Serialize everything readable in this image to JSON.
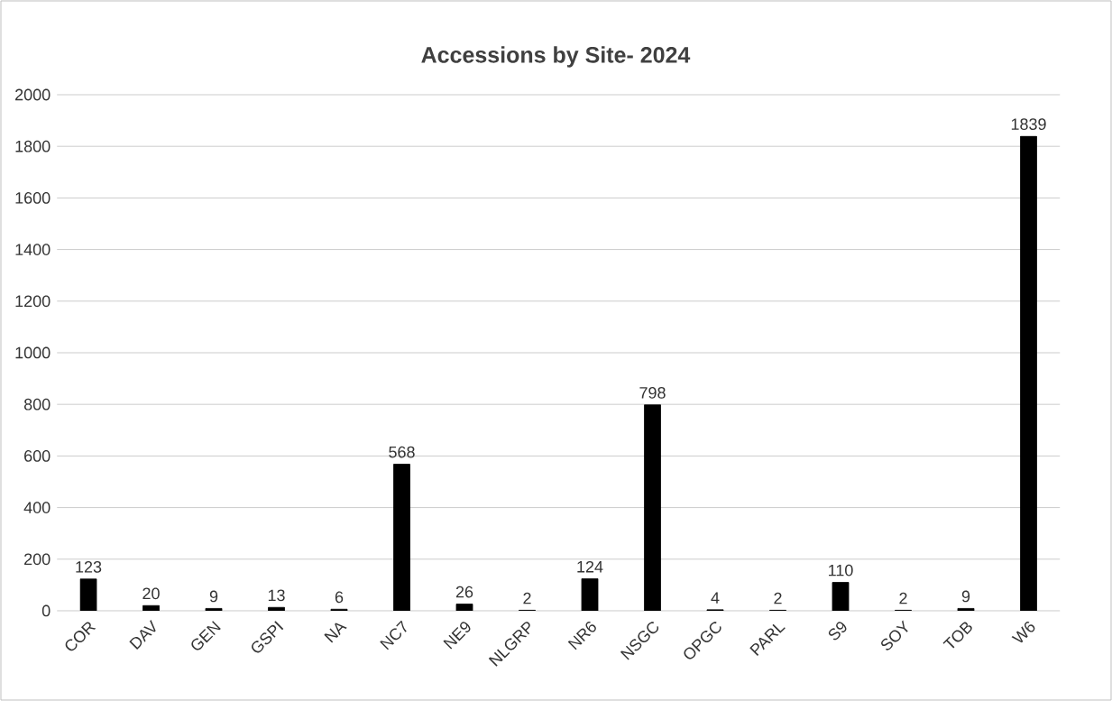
{
  "chart_data": {
    "type": "bar",
    "title": "Accessions by Site- 2024",
    "categories": [
      "COR",
      "DAV",
      "GEN",
      "GSPI",
      "NA",
      "NC7",
      "NE9",
      "NLGRP",
      "NR6",
      "NSGC",
      "OPGC",
      "PARL",
      "S9",
      "SOY",
      "TOB",
      "W6"
    ],
    "values": [
      123,
      20,
      9,
      13,
      6,
      568,
      26,
      2,
      124,
      798,
      4,
      2,
      110,
      2,
      9,
      1839
    ],
    "color": "#000000",
    "ylim": [
      0,
      2000
    ],
    "yticks": [
      0,
      200,
      400,
      600,
      800,
      1000,
      1200,
      1400,
      1600,
      1800,
      2000
    ],
    "grid": "y",
    "data_labels": true
  }
}
